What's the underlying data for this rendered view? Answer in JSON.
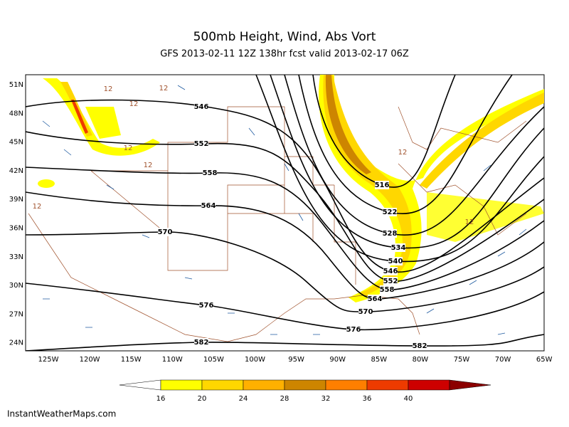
{
  "header": {
    "title": "500mb Height, Wind, Abs Vort",
    "subtitle": "GFS 2013-02-11 12Z 138hr fcst valid 2013-02-17 06Z"
  },
  "map": {
    "lat_labels": [
      "51N",
      "48N",
      "45N",
      "42N",
      "39N",
      "36N",
      "33N",
      "30N",
      "27N",
      "24N"
    ],
    "lon_labels": [
      "125W",
      "120W",
      "115W",
      "110W",
      "105W",
      "100W",
      "95W",
      "90W",
      "85W",
      "80W",
      "75W",
      "70W",
      "65W"
    ],
    "contour_labels": [
      "546",
      "552",
      "558",
      "564",
      "570",
      "576",
      "582",
      "516",
      "522",
      "528",
      "534",
      "540",
      "546",
      "552",
      "558",
      "564",
      "570",
      "576",
      "582"
    ],
    "vorticity_labels": [
      "12",
      "12",
      "12",
      "12",
      "12",
      "12",
      "12",
      "12"
    ]
  },
  "colorbar": {
    "labels": [
      "16",
      "20",
      "24",
      "28",
      "32",
      "36",
      "40"
    ],
    "colors": [
      "#ffffff",
      "#ffff00",
      "#ffd700",
      "#ffb000",
      "#cd8500",
      "#ff7f00",
      "#ee3b00",
      "#cd0000",
      "#8b0000"
    ]
  },
  "footer": {
    "credit": "InstantWeatherMaps.com"
  }
}
